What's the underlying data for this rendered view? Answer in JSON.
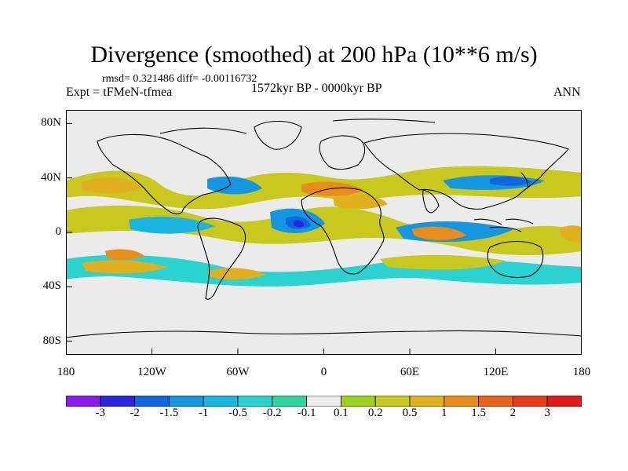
{
  "title": "Divergence (smoothed) at 200 hPa (10**6 m/s)",
  "stats": "rmsd= 0.321486 diff= -0.00116732",
  "experiment": "Expt = tFMeN-tfmea",
  "period": "1572kyr BP - 0000kyr BP",
  "season": "ANN",
  "map": {
    "lat_labels": [
      "80N",
      "40N",
      "0",
      "40S",
      "80S"
    ],
    "lat_values": [
      80,
      40,
      0,
      -40,
      -80
    ],
    "lon_labels": [
      "180",
      "120W",
      "60W",
      "0",
      "60E",
      "120E",
      "180"
    ],
    "lon_values": [
      -180,
      -120,
      -60,
      0,
      60,
      120,
      180
    ],
    "lat_range": [
      -90,
      90
    ],
    "lon_range": [
      -180,
      180
    ],
    "background_color": "#ebebeb"
  },
  "colorbar": {
    "labels": [
      "-3",
      "-2",
      "-1.5",
      "-1",
      "-0.5",
      "-0.2",
      "-0.1",
      "0.1",
      "0.2",
      "0.5",
      "1",
      "1.5",
      "2",
      "3"
    ],
    "colors": [
      "#8c1bee",
      "#2a26e0",
      "#1066e0",
      "#1496e0",
      "#1ab4e0",
      "#2ad2d0",
      "#2ed49a",
      "#ebebeb",
      "#9bd21e",
      "#c8c81e",
      "#e0b01e",
      "#e88c1a",
      "#e8641a",
      "#e83c1a",
      "#e01a1a"
    ]
  }
}
